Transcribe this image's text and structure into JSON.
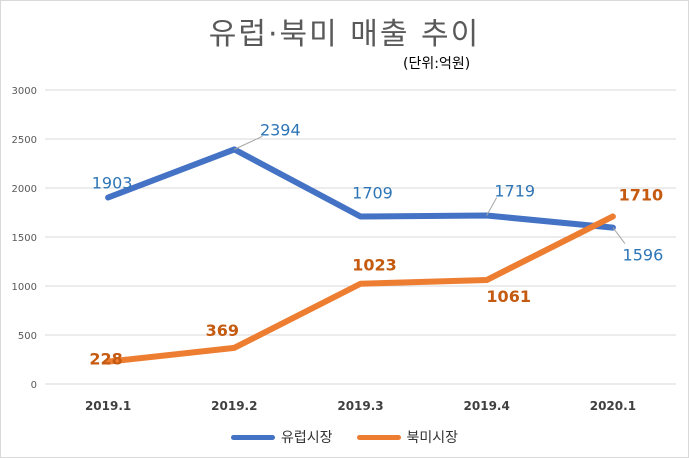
{
  "chart_data": {
    "type": "line",
    "title": "유럽·북미 매출 추이",
    "subtitle": "(단위:억원)",
    "categories": [
      "2019.1",
      "2019.2",
      "2019.3",
      "2019.4",
      "2020.1"
    ],
    "ylim": [
      0,
      3000
    ],
    "yticks": [
      0,
      500,
      1000,
      1500,
      2000,
      2500,
      3000
    ],
    "grid": true,
    "legend_position": "bottom",
    "series": [
      {
        "name": "유럽시장",
        "values": [
          1903,
          2394,
          1709,
          1719,
          1596
        ],
        "color": "#4472C4",
        "label_color": "#2E75B6"
      },
      {
        "name": "북미시장",
        "values": [
          228,
          369,
          1023,
          1061,
          1710
        ],
        "color": "#ED7D31",
        "label_color": "#C55A11"
      }
    ]
  }
}
